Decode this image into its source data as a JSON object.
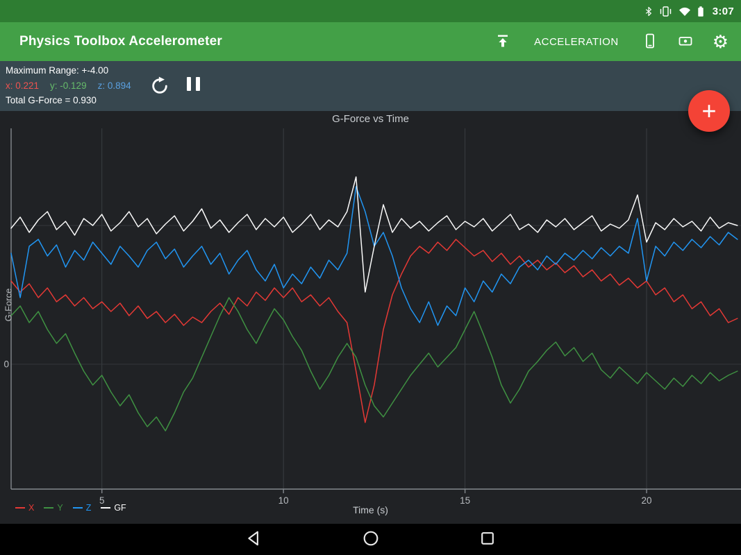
{
  "status_bar": {
    "time": "3:07",
    "icons": [
      "bluetooth-icon",
      "vibrate-icon",
      "wifi-icon",
      "battery-icon"
    ]
  },
  "app_bar": {
    "title": "Physics Toolbox Accelerometer",
    "mode": "ACCELERATION"
  },
  "readout": {
    "max_range": "Maximum Range: +-4.00",
    "x": "x: 0.221",
    "y": "y: -0.129",
    "z": "z: 0.894",
    "total": "Total G-Force = 0.930"
  },
  "fab": {
    "label": "+"
  },
  "colors": {
    "status_bar": "#2e7d32",
    "app_bar": "#43a047",
    "readout_bar": "#37474f",
    "fab": "#f44336",
    "x_text": "#ef5350",
    "y_text": "#66bb6a",
    "z_text": "#5aa0e0",
    "chart_bg": "#202225"
  },
  "chart_data": {
    "type": "line",
    "title": "G-Force vs Time",
    "xlabel": "Time (s)",
    "ylabel": "G-Force",
    "x_range": [
      2.5,
      22.6
    ],
    "y_range": [
      -0.9,
      1.7
    ],
    "x_ticks": [
      5,
      10,
      15,
      20
    ],
    "y_ticks": [
      0,
      1
    ],
    "y_tick_labels": [
      "0",
      ""
    ],
    "grid": true,
    "legend_position": "bottom-left",
    "t_start": 2.5,
    "t_step": 0.25,
    "series": [
      {
        "name": "X",
        "color": "#e53935",
        "values": [
          0.6,
          0.52,
          0.58,
          0.48,
          0.55,
          0.45,
          0.5,
          0.42,
          0.48,
          0.4,
          0.45,
          0.38,
          0.44,
          0.35,
          0.42,
          0.33,
          0.38,
          0.3,
          0.36,
          0.28,
          0.34,
          0.3,
          0.38,
          0.44,
          0.36,
          0.48,
          0.42,
          0.52,
          0.46,
          0.55,
          0.48,
          0.55,
          0.45,
          0.5,
          0.42,
          0.48,
          0.38,
          0.3,
          -0.05,
          -0.42,
          -0.15,
          0.25,
          0.5,
          0.65,
          0.78,
          0.85,
          0.8,
          0.88,
          0.82,
          0.9,
          0.84,
          0.78,
          0.82,
          0.74,
          0.8,
          0.72,
          0.78,
          0.7,
          0.75,
          0.68,
          0.73,
          0.66,
          0.71,
          0.63,
          0.68,
          0.6,
          0.65,
          0.57,
          0.62,
          0.55,
          0.6,
          0.5,
          0.55,
          0.45,
          0.5,
          0.4,
          0.45,
          0.35,
          0.4,
          0.3,
          0.33
        ]
      },
      {
        "name": "Y",
        "color": "#3f9142",
        "values": [
          0.35,
          0.42,
          0.3,
          0.38,
          0.25,
          0.15,
          0.22,
          0.08,
          -0.05,
          -0.15,
          -0.08,
          -0.2,
          -0.3,
          -0.22,
          -0.35,
          -0.45,
          -0.38,
          -0.48,
          -0.35,
          -0.2,
          -0.1,
          0.05,
          0.2,
          0.35,
          0.48,
          0.38,
          0.25,
          0.15,
          0.28,
          0.4,
          0.32,
          0.2,
          0.1,
          -0.05,
          -0.18,
          -0.08,
          0.05,
          0.15,
          0.05,
          -0.15,
          -0.3,
          -0.38,
          -0.28,
          -0.18,
          -0.08,
          0.0,
          0.08,
          -0.02,
          0.05,
          0.12,
          0.25,
          0.38,
          0.22,
          0.05,
          -0.15,
          -0.28,
          -0.18,
          -0.05,
          0.02,
          0.1,
          0.16,
          0.06,
          0.12,
          0.02,
          0.08,
          -0.04,
          -0.1,
          -0.02,
          -0.08,
          -0.14,
          -0.06,
          -0.12,
          -0.18,
          -0.1,
          -0.16,
          -0.08,
          -0.14,
          -0.06,
          -0.12,
          -0.08,
          -0.05
        ]
      },
      {
        "name": "Z",
        "color": "#2196f3",
        "values": [
          0.8,
          0.48,
          0.85,
          0.9,
          0.78,
          0.86,
          0.7,
          0.82,
          0.75,
          0.88,
          0.8,
          0.72,
          0.85,
          0.78,
          0.7,
          0.82,
          0.88,
          0.76,
          0.83,
          0.7,
          0.78,
          0.85,
          0.72,
          0.8,
          0.65,
          0.75,
          0.82,
          0.68,
          0.6,
          0.72,
          0.55,
          0.65,
          0.58,
          0.7,
          0.62,
          0.75,
          0.68,
          0.8,
          1.28,
          1.1,
          0.85,
          0.95,
          0.78,
          0.55,
          0.4,
          0.3,
          0.45,
          0.28,
          0.42,
          0.35,
          0.55,
          0.45,
          0.6,
          0.52,
          0.65,
          0.58,
          0.7,
          0.75,
          0.68,
          0.78,
          0.72,
          0.8,
          0.75,
          0.82,
          0.76,
          0.84,
          0.78,
          0.85,
          0.8,
          1.05,
          0.6,
          0.85,
          0.78,
          0.88,
          0.82,
          0.9,
          0.84,
          0.92,
          0.86,
          0.95,
          0.9
        ]
      },
      {
        "name": "GF",
        "color": "#fafafa",
        "values": [
          0.98,
          1.06,
          0.95,
          1.04,
          1.1,
          0.97,
          1.03,
          0.93,
          1.05,
          1.0,
          1.08,
          0.96,
          1.02,
          1.1,
          0.99,
          1.05,
          0.94,
          1.01,
          1.07,
          0.96,
          1.03,
          1.12,
          0.98,
          1.04,
          0.95,
          1.02,
          1.08,
          0.97,
          1.05,
          0.99,
          1.06,
          0.95,
          1.01,
          1.08,
          0.97,
          1.04,
          0.99,
          1.1,
          1.35,
          0.52,
          0.85,
          1.15,
          0.95,
          1.05,
          0.98,
          1.03,
          0.96,
          1.02,
          1.07,
          0.97,
          1.03,
          0.99,
          1.05,
          0.96,
          1.02,
          1.08,
          0.97,
          1.01,
          0.95,
          1.04,
          0.99,
          1.05,
          0.97,
          1.02,
          1.07,
          0.96,
          1.01,
          0.98,
          1.04,
          1.22,
          0.88,
          1.02,
          0.97,
          1.05,
          0.99,
          1.03,
          0.96,
          1.06,
          0.98,
          1.02,
          1.0
        ]
      }
    ]
  }
}
